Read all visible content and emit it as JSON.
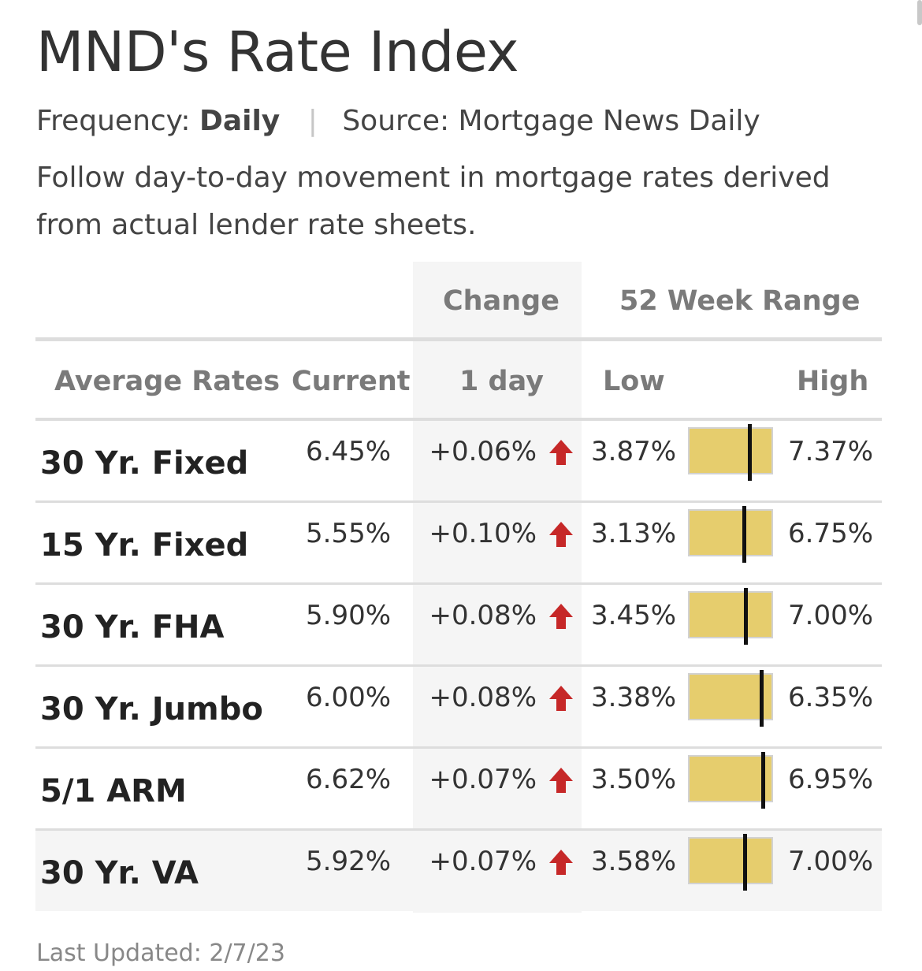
{
  "title": "MND's Rate Index",
  "meta": {
    "frequency_label": "Frequency:",
    "frequency_value": "Daily",
    "separator": "|",
    "source": "Source: Mortgage News Daily"
  },
  "description": "Follow day-to-day movement in mortgage rates derived from actual lender rate sheets.",
  "table": {
    "group_headers": {
      "change": "Change",
      "range": "52 Week Range"
    },
    "headers": {
      "rate_type": "Average Rates",
      "current": "Current",
      "change_1day": "1 day",
      "low": "Low",
      "high": "High"
    },
    "rows": [
      {
        "name": "30 Yr. Fixed",
        "current": "6.45%",
        "change": "+0.06%",
        "direction": "up",
        "low": "3.87%",
        "high": "7.37%",
        "current_value": 6.45,
        "low_value": 3.87,
        "high_value": 7.37
      },
      {
        "name": "15 Yr. Fixed",
        "current": "5.55%",
        "change": "+0.10%",
        "direction": "up",
        "low": "3.13%",
        "high": "6.75%",
        "current_value": 5.55,
        "low_value": 3.13,
        "high_value": 6.75
      },
      {
        "name": "30 Yr. FHA",
        "current": "5.90%",
        "change": "+0.08%",
        "direction": "up",
        "low": "3.45%",
        "high": "7.00%",
        "current_value": 5.9,
        "low_value": 3.45,
        "high_value": 7.0
      },
      {
        "name": "30 Yr. Jumbo",
        "current": "6.00%",
        "change": "+0.08%",
        "direction": "up",
        "low": "3.38%",
        "high": "6.35%",
        "current_value": 6.0,
        "low_value": 3.38,
        "high_value": 6.35
      },
      {
        "name": "5/1 ARM",
        "current": "6.62%",
        "change": "+0.07%",
        "direction": "up",
        "low": "3.50%",
        "high": "6.95%",
        "current_value": 6.62,
        "low_value": 3.5,
        "high_value": 6.95
      },
      {
        "name": "30 Yr. VA",
        "current": "5.92%",
        "change": "+0.07%",
        "direction": "up",
        "low": "3.58%",
        "high": "7.00%",
        "current_value": 5.92,
        "low_value": 3.58,
        "high_value": 7.0
      }
    ]
  },
  "last_updated": "Last Updated: 2/7/23",
  "colors": {
    "range_bar": "#e6cd6d",
    "up_arrow": "#c62828",
    "marker": "#111111",
    "shaded": "#f5f5f5"
  },
  "icons": {
    "up": "arrow-up-icon"
  }
}
